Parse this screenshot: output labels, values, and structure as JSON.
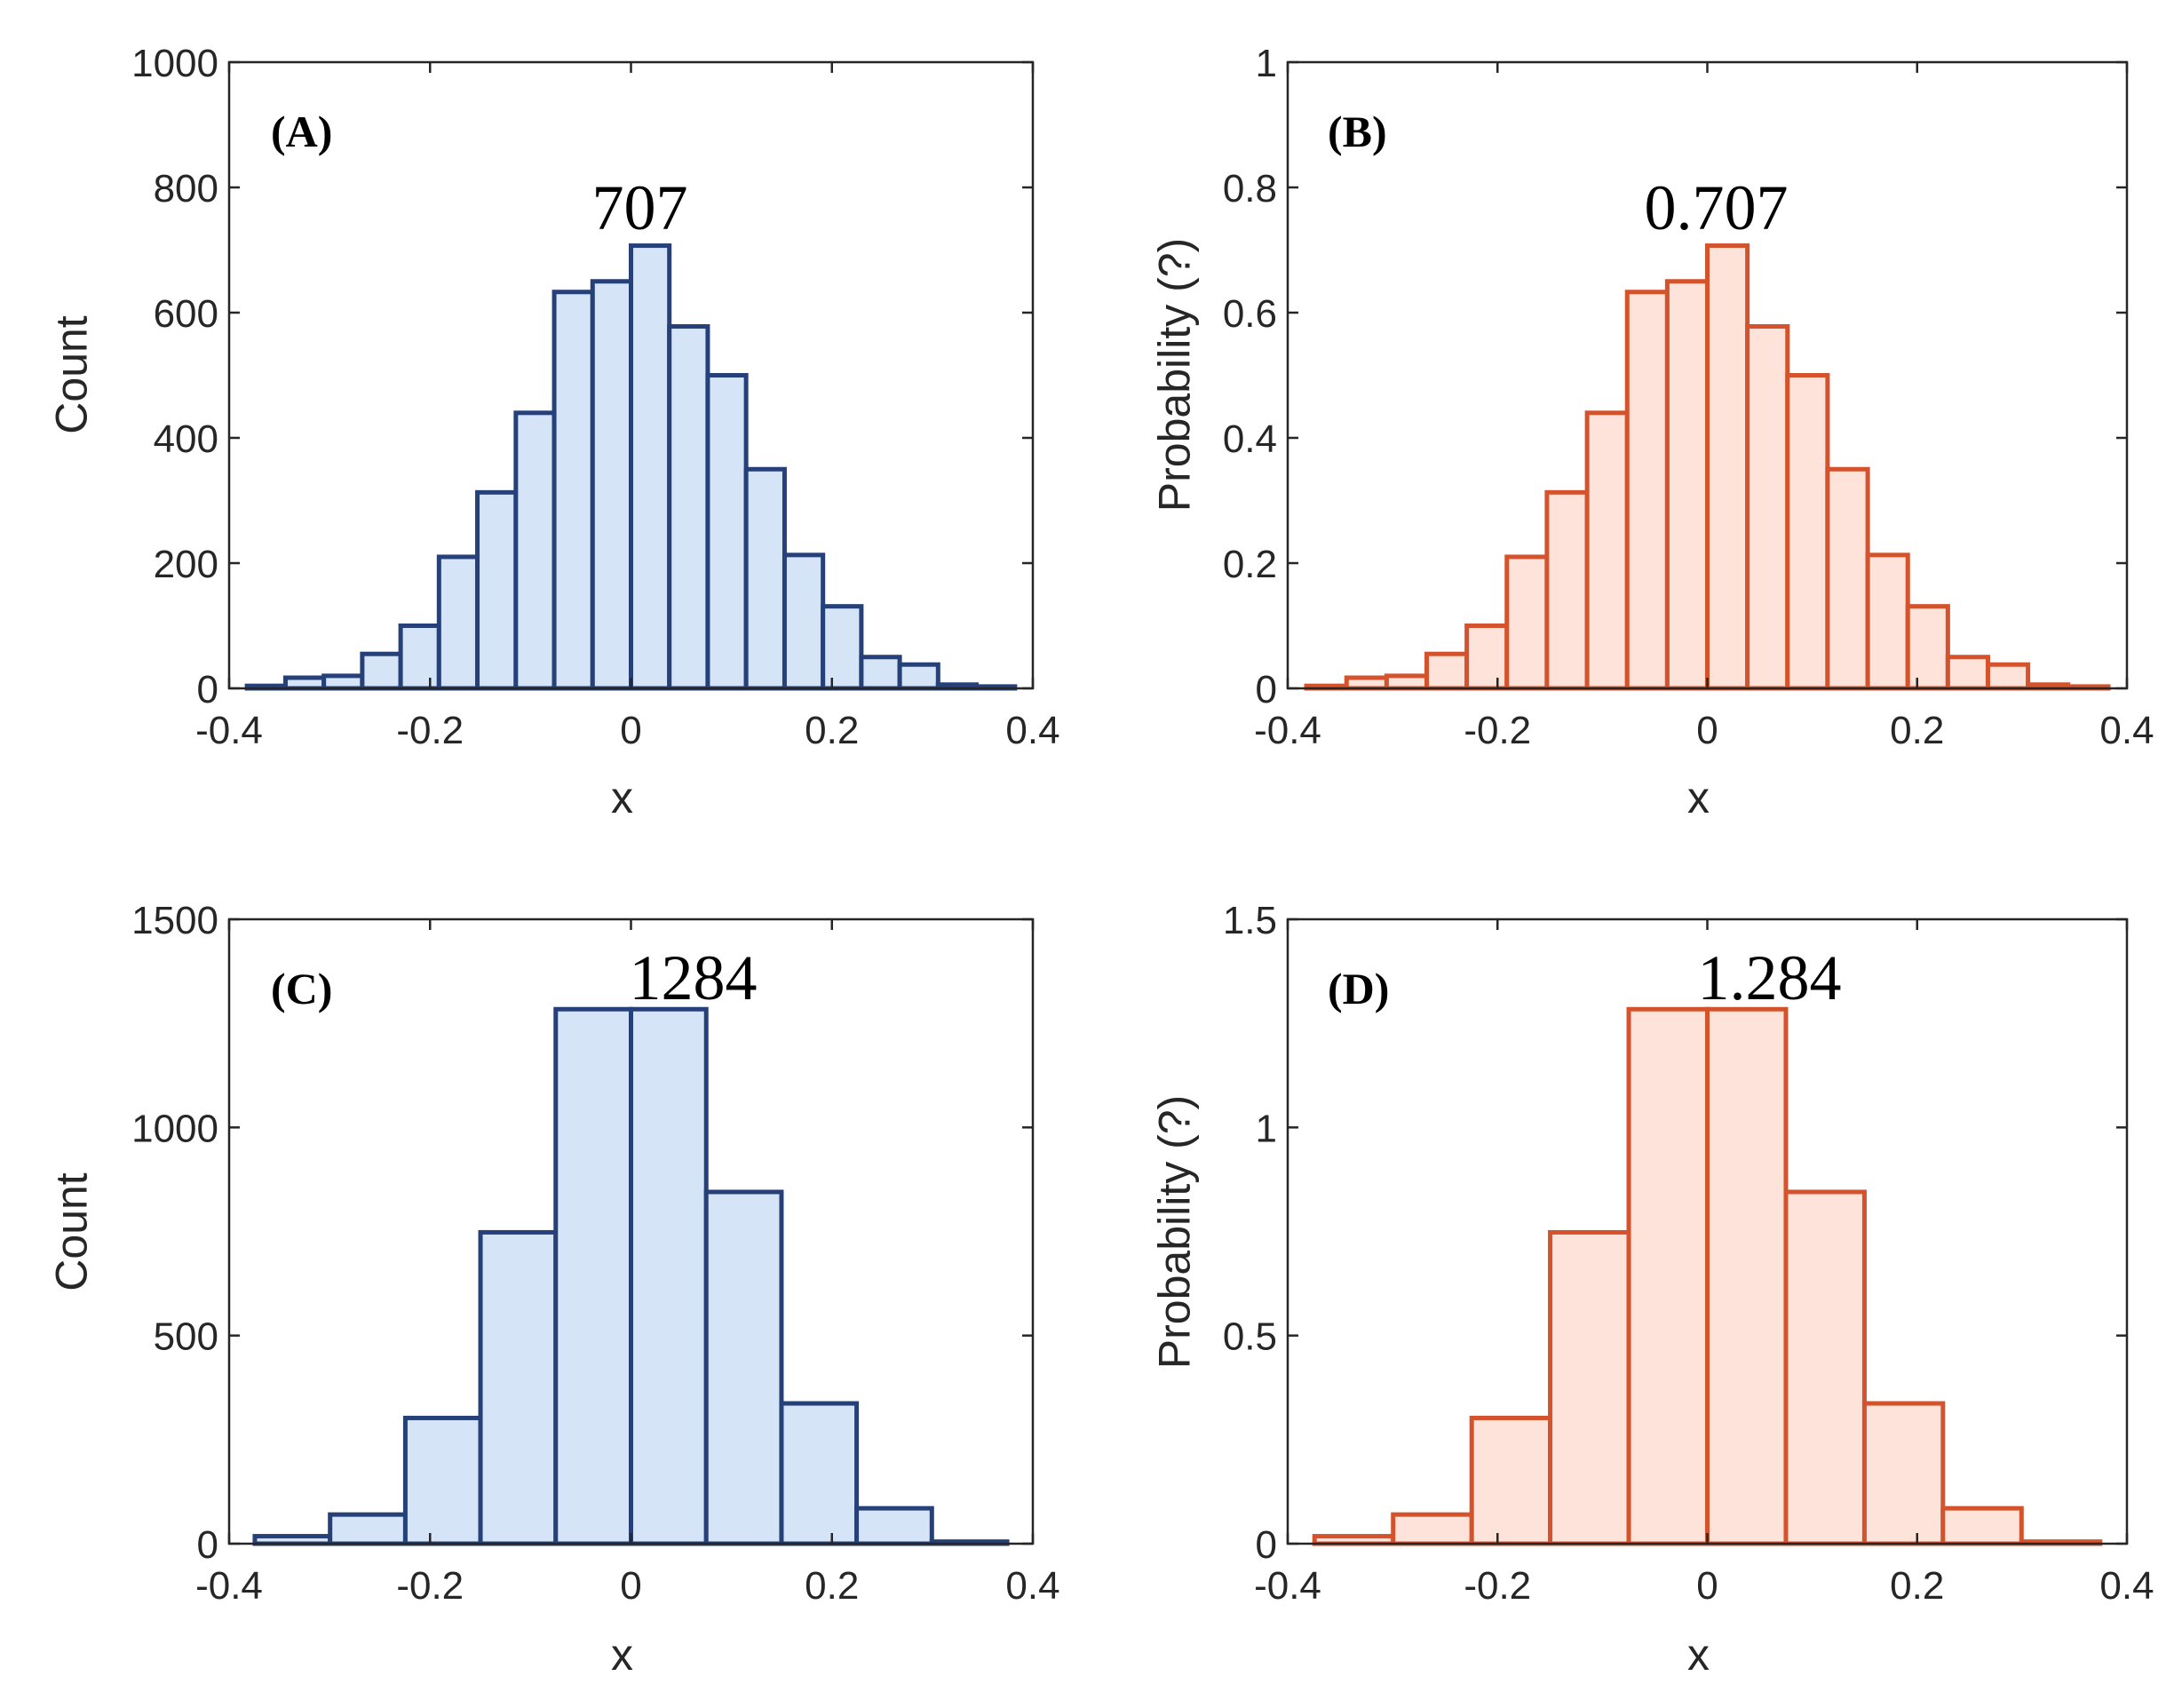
{
  "chart_data": [
    {
      "type": "bar",
      "panel": "(A)",
      "annotation": "707",
      "xlabel": "x",
      "ylabel": "Count",
      "xlim": [
        -0.4,
        0.4
      ],
      "ylim": [
        0,
        1000
      ],
      "xticks": [
        "-0.4",
        "-0.2",
        "0",
        "0.2",
        "0.4"
      ],
      "yticks": [
        "0",
        "200",
        "400",
        "600",
        "800",
        "1000"
      ],
      "ytick_values": [
        0,
        200,
        400,
        600,
        800,
        1000
      ],
      "bin_edges": [
        -0.3822,
        -0.3439,
        -0.3057,
        -0.2675,
        -0.2293,
        -0.1911,
        -0.1529,
        -0.1146,
        -0.0764,
        -0.0382,
        0.0,
        0.0382,
        0.0764,
        0.1146,
        0.1529,
        0.1911,
        0.2293,
        0.2675,
        0.3057,
        0.3439,
        0.3822
      ],
      "values": [
        4,
        17,
        20,
        55,
        100,
        210,
        313,
        440,
        633,
        650,
        707,
        578,
        500,
        350,
        213,
        131,
        50,
        38,
        6,
        3
      ],
      "face_color": "#d6e4f7",
      "edge_color": "#26407a"
    },
    {
      "type": "bar",
      "panel": "(B)",
      "annotation": "0.707",
      "xlabel": "x",
      "ylabel": "Probability (?)",
      "xlim": [
        -0.4,
        0.4
      ],
      "ylim": [
        0,
        1
      ],
      "xticks": [
        "-0.4",
        "-0.2",
        "0",
        "0.2",
        "0.4"
      ],
      "yticks": [
        "0",
        "0.2",
        "0.4",
        "0.6",
        "0.8",
        "1"
      ],
      "ytick_values": [
        0,
        0.2,
        0.4,
        0.6,
        0.8,
        1
      ],
      "bin_edges": [
        -0.3822,
        -0.3439,
        -0.3057,
        -0.2675,
        -0.2293,
        -0.1911,
        -0.1529,
        -0.1146,
        -0.0764,
        -0.0382,
        0.0,
        0.0382,
        0.0764,
        0.1146,
        0.1529,
        0.1911,
        0.2293,
        0.2675,
        0.3057,
        0.3439,
        0.3822
      ],
      "values": [
        0.004,
        0.017,
        0.02,
        0.055,
        0.1,
        0.21,
        0.313,
        0.44,
        0.633,
        0.65,
        0.707,
        0.578,
        0.5,
        0.35,
        0.213,
        0.131,
        0.05,
        0.038,
        0.006,
        0.003
      ],
      "face_color": "#fde3da",
      "edge_color": "#d4532c"
    },
    {
      "type": "bar",
      "panel": "(C)",
      "annotation": "1284",
      "xlabel": "x",
      "ylabel": "Count",
      "xlim": [
        -0.4,
        0.4
      ],
      "ylim": [
        0,
        1500
      ],
      "xticks": [
        "-0.4",
        "-0.2",
        "0",
        "0.2",
        "0.4"
      ],
      "yticks": [
        "0",
        "500",
        "1000",
        "1500"
      ],
      "ytick_values": [
        0,
        500,
        1000,
        1500
      ],
      "bin_edges": [
        -0.3744,
        -0.2995,
        -0.2246,
        -0.1498,
        -0.0749,
        0.0,
        0.0749,
        0.1498,
        0.2246,
        0.2995,
        0.3744
      ],
      "values": [
        18,
        70,
        302,
        748,
        1284,
        1284,
        845,
        337,
        85,
        5
      ],
      "face_color": "#d6e4f7",
      "edge_color": "#26407a"
    },
    {
      "type": "bar",
      "panel": "(D)",
      "annotation": "1.284",
      "xlabel": "x",
      "ylabel": "Probability (?)",
      "xlim": [
        -0.4,
        0.4
      ],
      "ylim": [
        0,
        1.5
      ],
      "xticks": [
        "-0.4",
        "-0.2",
        "0",
        "0.2",
        "0.4"
      ],
      "yticks": [
        "0",
        "0.5",
        "1",
        "1.5"
      ],
      "ytick_values": [
        0,
        0.5,
        1,
        1.5
      ],
      "bin_edges": [
        -0.3744,
        -0.2995,
        -0.2246,
        -0.1498,
        -0.0749,
        0.0,
        0.0749,
        0.1498,
        0.2246,
        0.2995,
        0.3744
      ],
      "values": [
        0.018,
        0.07,
        0.302,
        0.748,
        1.284,
        1.284,
        0.845,
        0.337,
        0.085,
        0.005
      ],
      "face_color": "#fde3da",
      "edge_color": "#d4532c"
    }
  ]
}
